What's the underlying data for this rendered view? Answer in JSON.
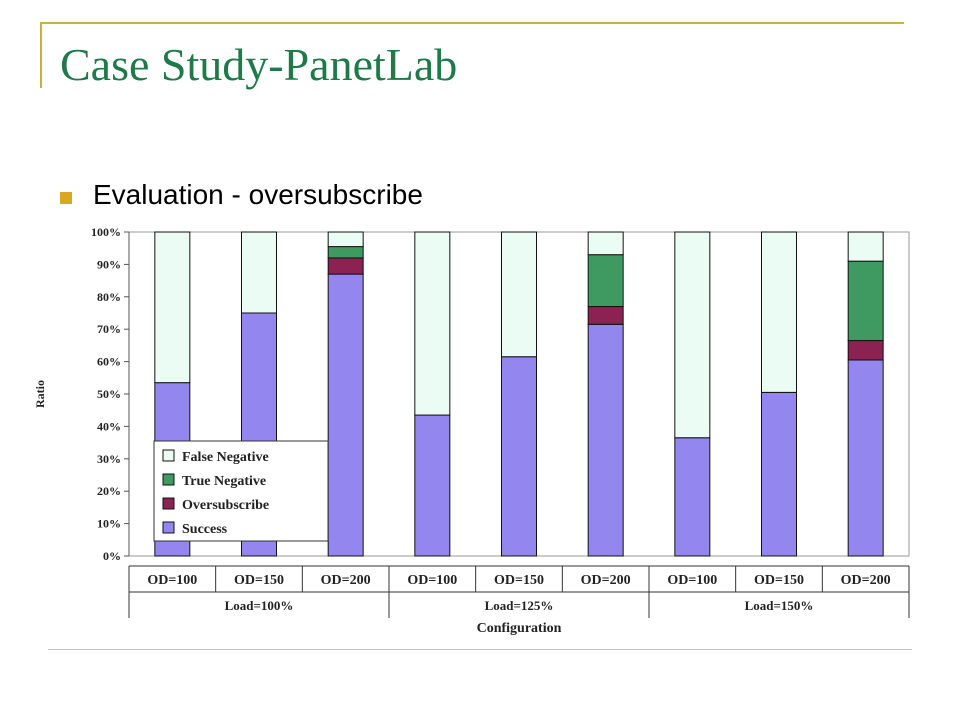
{
  "slide": {
    "title": "Case Study-PanetLab",
    "bullet": "Evaluation - oversubscribe"
  },
  "colors": {
    "title": "#1f7a4a",
    "bullet": "#d9a81e",
    "rule": "#c8b23a"
  },
  "chart_data": {
    "type": "bar",
    "stacked": true,
    "ylabel": "Ratio",
    "xlabel": "Configuration",
    "ylim": [
      0,
      100
    ],
    "y_ticks": [
      "0%",
      "10%",
      "20%",
      "30%",
      "40%",
      "50%",
      "60%",
      "70%",
      "80%",
      "90%",
      "100%"
    ],
    "categories": [
      "OD=100",
      "OD=150",
      "OD=200",
      "OD=100",
      "OD=150",
      "OD=200",
      "OD=100",
      "OD=150",
      "OD=200"
    ],
    "groups": [
      {
        "label": "Load=100%",
        "count": 3
      },
      {
        "label": "Load=125%",
        "count": 3
      },
      {
        "label": "Load=150%",
        "count": 3
      }
    ],
    "series": [
      {
        "name": "Success",
        "color": "#9386ee",
        "values": [
          53.5,
          75,
          87,
          43.5,
          61.5,
          71.5,
          36.5,
          50.5,
          60.5
        ]
      },
      {
        "name": "Oversubscribe",
        "color": "#8b2252",
        "values": [
          0,
          0,
          5,
          0,
          0,
          5.5,
          0,
          0,
          6
        ]
      },
      {
        "name": "True Negative",
        "color": "#3f9a62",
        "values": [
          0,
          0,
          3.5,
          0,
          0,
          16,
          0,
          0,
          24.5
        ]
      },
      {
        "name": "False Negative",
        "color": "#eafcf3",
        "values": [
          46.5,
          25,
          4.5,
          56.5,
          38.5,
          7,
          63.5,
          49.5,
          9
        ]
      }
    ],
    "legend_order": [
      "False Negative",
      "True Negative",
      "Oversubscribe",
      "Success"
    ],
    "legend_position": "lower-left"
  }
}
